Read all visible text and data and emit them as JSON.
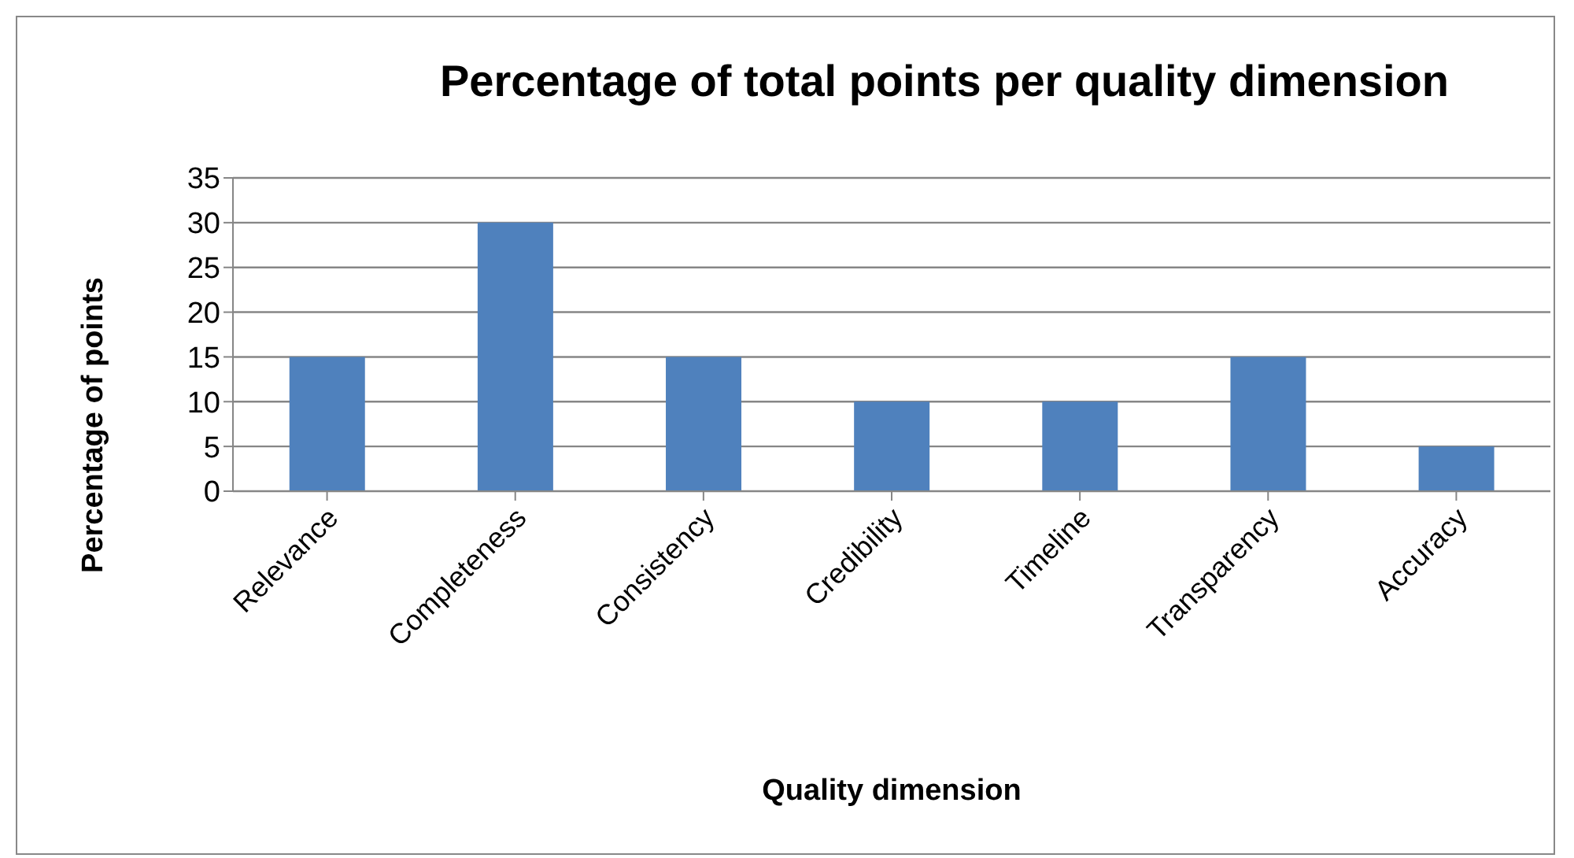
{
  "chart_data": {
    "type": "bar",
    "title": "Percentage of total points per quality dimension",
    "xlabel": "Quality dimension",
    "ylabel": "Percentage of points",
    "categories": [
      "Relevance",
      "Completeness",
      "Consistency",
      "Credibility",
      "Timeline",
      "Transparency",
      "Accuracy"
    ],
    "values": [
      15,
      30,
      15,
      10,
      10,
      15,
      5
    ],
    "color": "#4f81bd",
    "ylim": [
      0,
      35
    ],
    "yticks": [
      0,
      5,
      10,
      15,
      20,
      25,
      30,
      35
    ],
    "grid": "y"
  }
}
